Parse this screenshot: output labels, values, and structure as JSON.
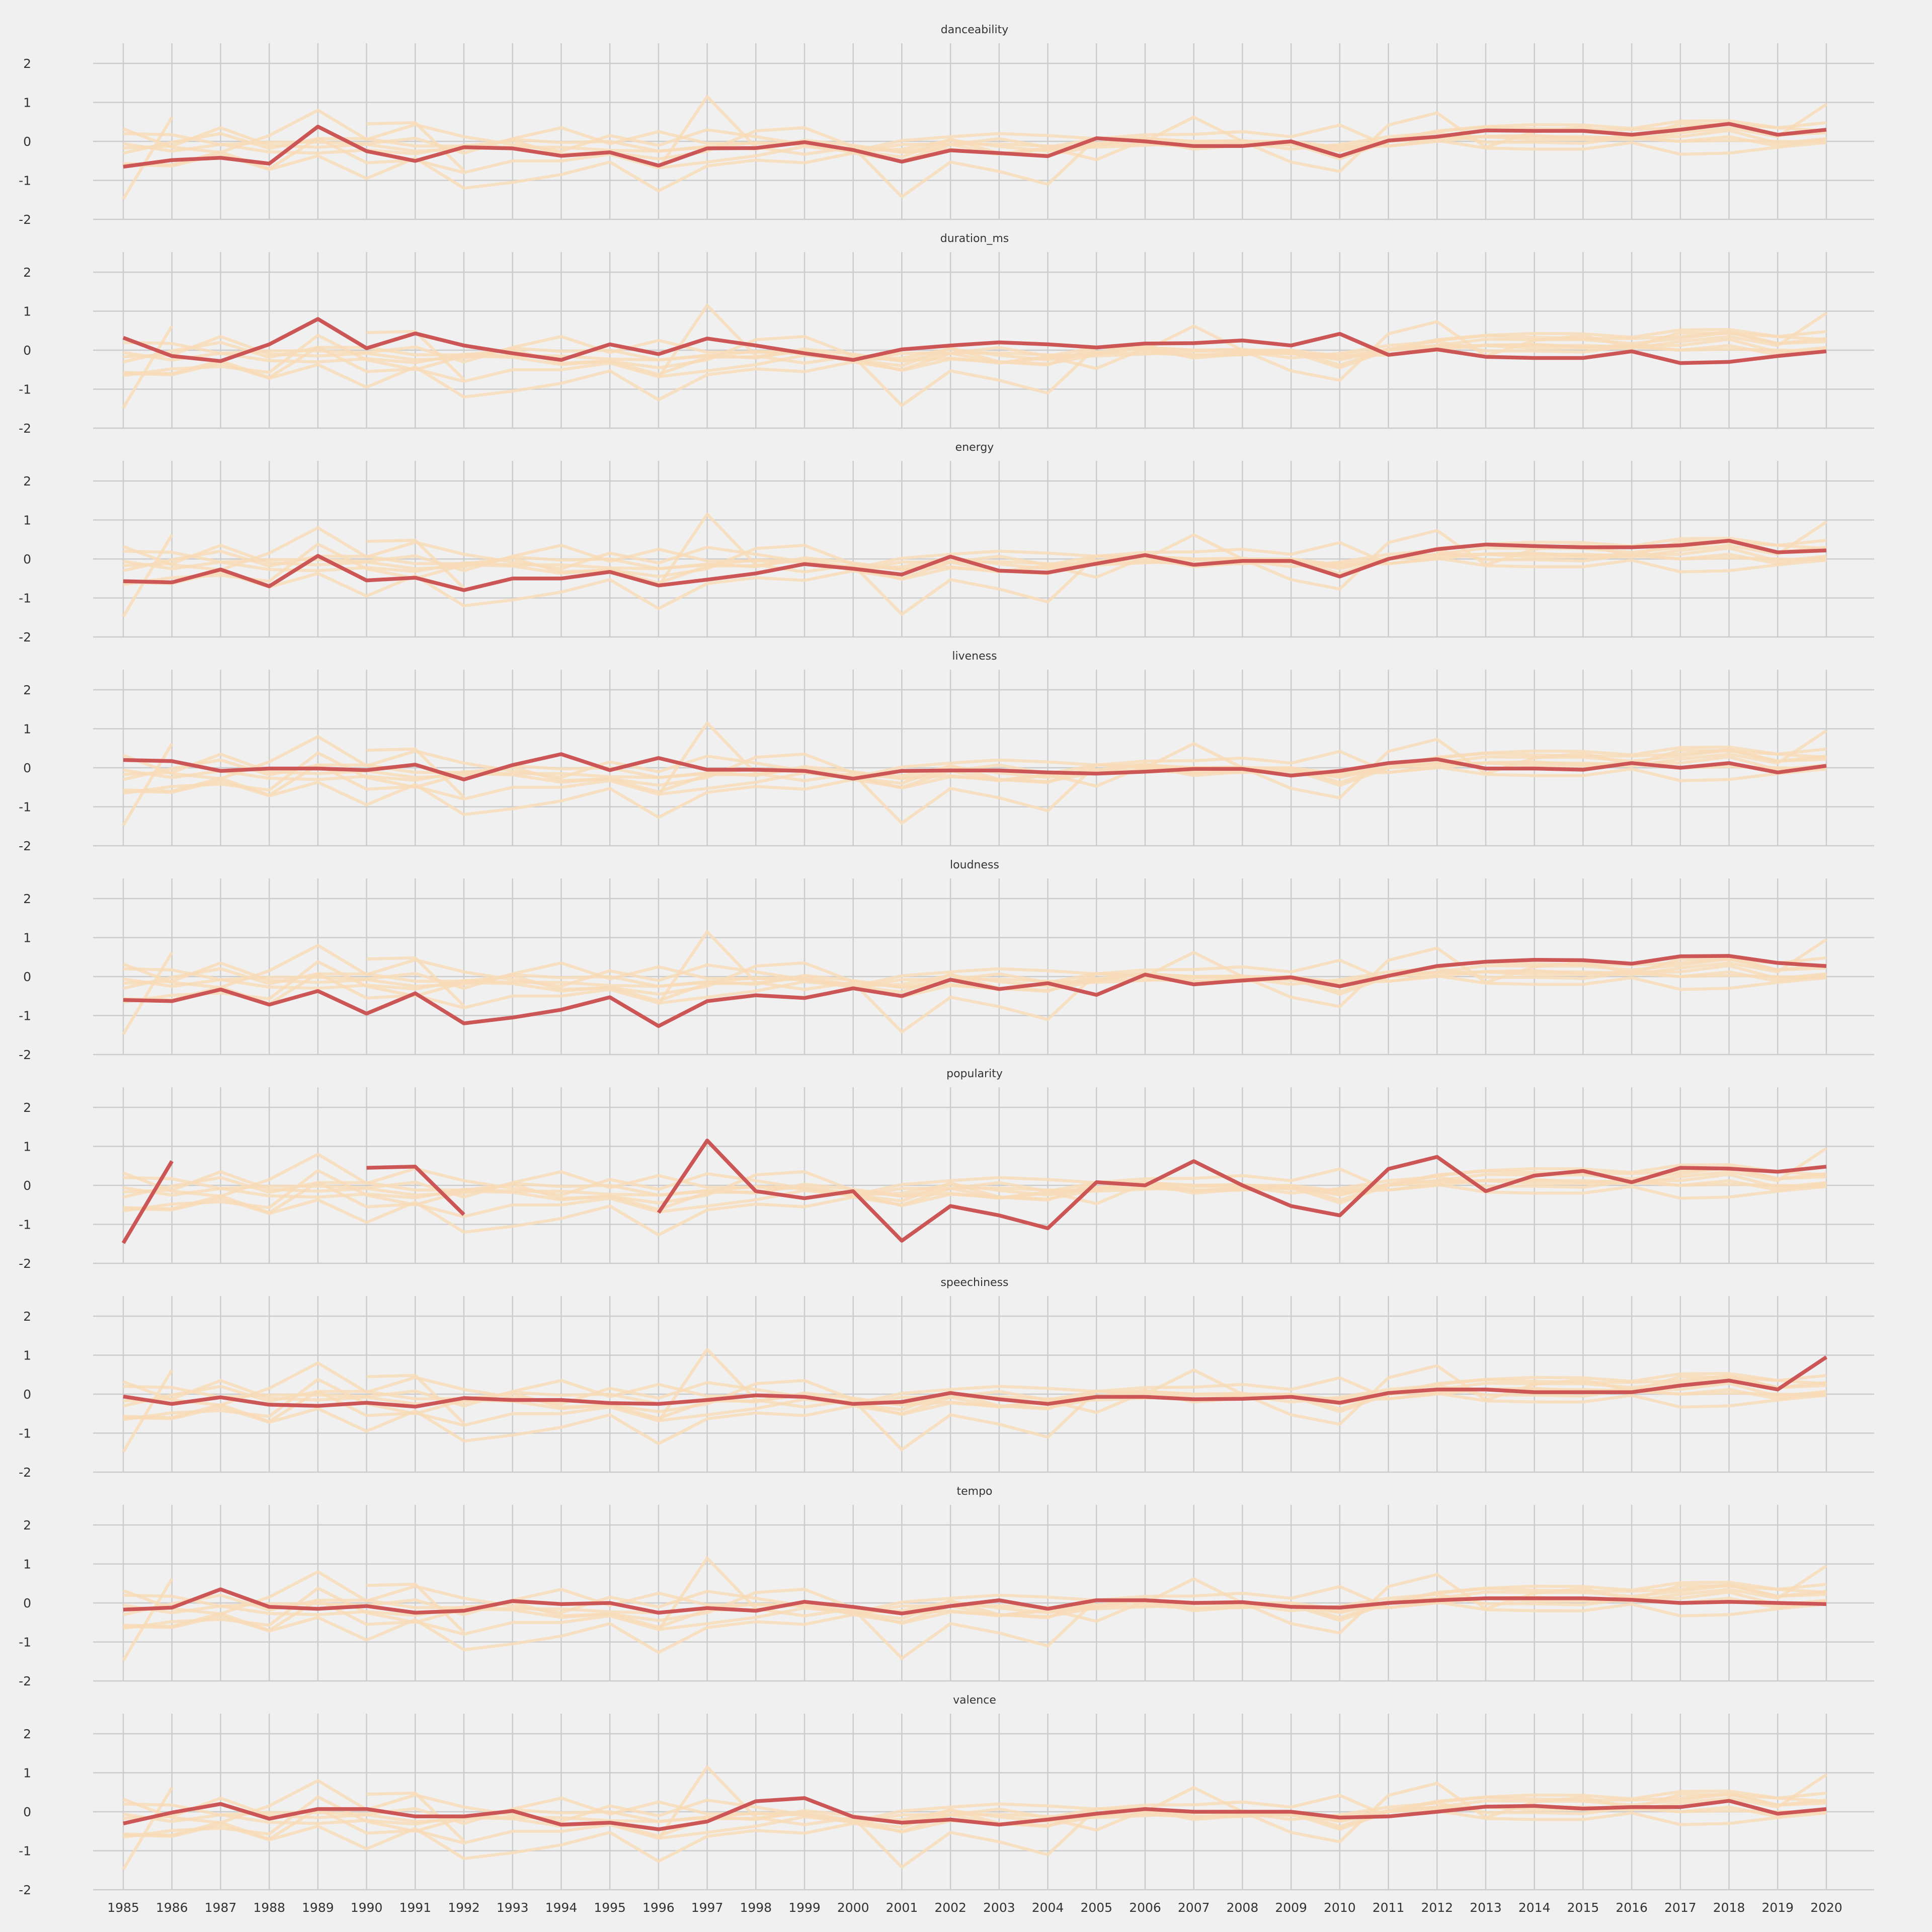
{
  "chart_data": {
    "type": "line",
    "x": [
      1985,
      1986,
      1987,
      1988,
      1989,
      1990,
      1991,
      1992,
      1993,
      1994,
      1995,
      1996,
      1997,
      1998,
      1999,
      2000,
      2001,
      2002,
      2003,
      2004,
      2005,
      2006,
      2007,
      2008,
      2009,
      2010,
      2011,
      2012,
      2013,
      2014,
      2015,
      2016,
      2017,
      2018,
      2019,
      2020
    ],
    "ylim": [
      -2,
      2.5
    ],
    "yticks": [
      -2,
      -1,
      0,
      1,
      2
    ],
    "grid": true,
    "highlight_color": "#cc5555",
    "background_color": "#cccccc",
    "features": [
      "danceability",
      "duration_ms",
      "energy",
      "liveness",
      "loudness",
      "popularity",
      "speechiness",
      "tempo",
      "valence"
    ],
    "series": [
      {
        "name": "danceability",
        "values": [
          -0.65,
          -0.48,
          -0.42,
          -0.57,
          0.38,
          -0.25,
          -0.5,
          -0.15,
          -0.18,
          -0.37,
          -0.28,
          -0.62,
          -0.18,
          -0.17,
          -0.02,
          -0.22,
          -0.52,
          -0.23,
          -0.3,
          -0.38,
          0.08,
          0.0,
          -0.12,
          -0.12,
          0.0,
          -0.38,
          0.02,
          0.12,
          0.28,
          0.27,
          0.27,
          0.17,
          0.3,
          0.45,
          0.17,
          0.3
        ]
      },
      {
        "name": "duration_ms",
        "values": [
          0.32,
          -0.15,
          -0.28,
          0.15,
          0.8,
          0.05,
          0.43,
          0.12,
          -0.08,
          -0.25,
          0.15,
          -0.1,
          0.3,
          0.12,
          -0.08,
          -0.25,
          0.02,
          0.12,
          0.2,
          0.15,
          0.07,
          0.17,
          0.18,
          0.25,
          0.12,
          0.42,
          -0.12,
          0.02,
          -0.17,
          -0.2,
          -0.2,
          -0.03,
          -0.33,
          -0.3,
          -0.15,
          -0.03
        ]
      },
      {
        "name": "energy",
        "values": [
          -0.57,
          -0.6,
          -0.27,
          -0.7,
          0.08,
          -0.55,
          -0.48,
          -0.8,
          -0.5,
          -0.5,
          -0.33,
          -0.68,
          -0.53,
          -0.37,
          -0.13,
          -0.25,
          -0.4,
          0.06,
          -0.3,
          -0.35,
          -0.12,
          0.1,
          -0.15,
          -0.05,
          -0.05,
          -0.45,
          0.0,
          0.25,
          0.37,
          0.33,
          0.3,
          0.3,
          0.35,
          0.47,
          0.17,
          0.22
        ]
      },
      {
        "name": "liveness",
        "values": [
          0.2,
          0.17,
          -0.08,
          -0.02,
          -0.02,
          -0.06,
          0.08,
          -0.3,
          0.07,
          0.35,
          -0.06,
          0.25,
          -0.05,
          -0.05,
          -0.08,
          -0.28,
          -0.08,
          -0.07,
          -0.07,
          -0.12,
          -0.15,
          -0.1,
          -0.03,
          -0.03,
          -0.2,
          -0.08,
          0.12,
          0.22,
          -0.02,
          -0.02,
          -0.05,
          0.12,
          0.0,
          0.12,
          -0.12,
          0.05
        ]
      },
      {
        "name": "loudness",
        "values": [
          -0.6,
          -0.63,
          -0.33,
          -0.72,
          -0.37,
          -0.95,
          -0.43,
          -1.2,
          -1.05,
          -0.85,
          -0.53,
          -1.27,
          -0.63,
          -0.48,
          -0.55,
          -0.3,
          -0.5,
          -0.08,
          -0.32,
          -0.17,
          -0.47,
          0.05,
          -0.2,
          -0.1,
          -0.02,
          -0.25,
          0.02,
          0.27,
          0.38,
          0.43,
          0.42,
          0.33,
          0.52,
          0.53,
          0.35,
          0.27
        ]
      },
      {
        "name": "popularity",
        "values": [
          -1.48,
          0.62,
          null,
          null,
          null,
          0.45,
          0.48,
          -0.75,
          null,
          null,
          null,
          -0.7,
          1.15,
          -0.15,
          -0.33,
          -0.15,
          -1.42,
          -0.53,
          -0.77,
          -1.1,
          0.08,
          0.0,
          0.62,
          0.0,
          -0.53,
          -0.77,
          0.42,
          0.73,
          -0.15,
          0.25,
          0.37,
          0.08,
          0.45,
          0.43,
          0.35,
          0.48
        ]
      },
      {
        "name": "speechiness",
        "values": [
          -0.06,
          -0.25,
          -0.08,
          -0.27,
          -0.3,
          -0.22,
          -0.32,
          -0.1,
          -0.15,
          -0.15,
          -0.23,
          -0.25,
          -0.15,
          -0.03,
          -0.07,
          -0.25,
          -0.2,
          0.03,
          -0.13,
          -0.25,
          -0.07,
          -0.07,
          -0.13,
          -0.12,
          -0.07,
          -0.22,
          0.03,
          0.12,
          0.12,
          0.05,
          0.05,
          0.05,
          0.22,
          0.35,
          0.12,
          0.95
        ]
      },
      {
        "name": "tempo",
        "values": [
          -0.17,
          -0.12,
          0.35,
          -0.1,
          -0.15,
          -0.08,
          -0.25,
          -0.2,
          0.05,
          -0.03,
          0.0,
          -0.25,
          -0.13,
          -0.2,
          0.03,
          -0.1,
          -0.27,
          -0.08,
          0.07,
          -0.15,
          0.07,
          0.07,
          0.0,
          0.02,
          -0.1,
          -0.12,
          0.0,
          0.07,
          0.12,
          0.12,
          0.12,
          0.08,
          0.0,
          0.03,
          0.0,
          -0.03
        ]
      },
      {
        "name": "valence",
        "values": [
          -0.3,
          -0.02,
          0.2,
          -0.18,
          0.07,
          0.07,
          -0.12,
          -0.12,
          0.02,
          -0.33,
          -0.28,
          -0.45,
          -0.25,
          0.27,
          0.35,
          -0.13,
          -0.28,
          -0.2,
          -0.33,
          -0.2,
          -0.05,
          0.07,
          0.0,
          0.0,
          0.0,
          -0.15,
          -0.12,
          0.0,
          0.13,
          0.15,
          0.08,
          0.12,
          0.12,
          0.28,
          -0.05,
          0.07
        ]
      }
    ]
  }
}
